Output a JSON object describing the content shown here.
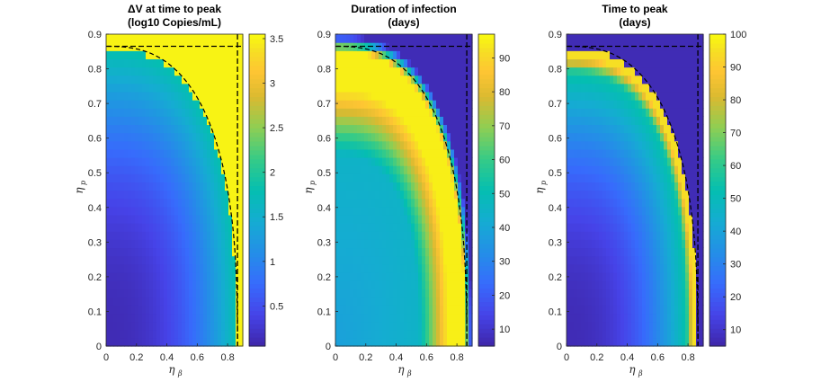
{
  "chart_data": [
    {
      "type": "heatmap",
      "id": "p1",
      "title_line1": "ΔV at time to peak",
      "title_line2": "(log10 Copies/mL)",
      "xlabel": "η",
      "xlabel_sub": "β",
      "ylabel": "η",
      "ylabel_sub": "p",
      "xlim": [
        0,
        0.9
      ],
      "ylim": [
        0,
        0.9
      ],
      "xticks": [
        "0",
        "0.2",
        "0.4",
        "0.6",
        "0.8"
      ],
      "yticks": [
        "0",
        "0.1",
        "0.2",
        "0.3",
        "0.4",
        "0.5",
        "0.6",
        "0.7",
        "0.8",
        "0.9"
      ],
      "clim": [
        0.05,
        3.55
      ],
      "colorbar_ticks": [
        "0.5",
        "1",
        "1.5",
        "2",
        "2.5",
        "3",
        "3.5"
      ],
      "colorbar_tick_values": [
        0.5,
        1,
        1.5,
        2,
        2.5,
        3,
        3.5
      ],
      "field": "deltaV",
      "dashed_h": 0.865,
      "dashed_v": 0.865
    },
    {
      "type": "heatmap",
      "id": "p2",
      "title_line1": "Duration of infection",
      "title_line2": "(days)",
      "xlabel": "η",
      "xlabel_sub": "β",
      "ylabel": "η",
      "ylabel_sub": "p",
      "xlim": [
        0,
        0.9
      ],
      "ylim": [
        0,
        0.9
      ],
      "xticks": [
        "0",
        "0.2",
        "0.4",
        "0.6",
        "0.8"
      ],
      "yticks": [
        "0",
        "0.1",
        "0.2",
        "0.3",
        "0.4",
        "0.5",
        "0.6",
        "0.7",
        "0.8",
        "0.9"
      ],
      "clim": [
        5,
        97
      ],
      "colorbar_ticks": [
        "10",
        "20",
        "30",
        "40",
        "50",
        "60",
        "70",
        "80",
        "90"
      ],
      "colorbar_tick_values": [
        10,
        20,
        30,
        40,
        50,
        60,
        70,
        80,
        90
      ],
      "field": "duration",
      "dashed_h": 0.865,
      "dashed_v": 0.865
    },
    {
      "type": "heatmap",
      "id": "p3",
      "title_line1": "Time to peak",
      "title_line2": "(days)",
      "xlabel": "η",
      "xlabel_sub": "β",
      "ylabel": "η",
      "ylabel_sub": "p",
      "xlim": [
        0,
        0.9
      ],
      "ylim": [
        0,
        0.9
      ],
      "xticks": [
        "0",
        "0.2",
        "0.4",
        "0.6",
        "0.8"
      ],
      "yticks": [
        "0",
        "0.1",
        "0.2",
        "0.3",
        "0.4",
        "0.5",
        "0.6",
        "0.7",
        "0.8",
        "0.9"
      ],
      "clim": [
        5,
        100
      ],
      "colorbar_ticks": [
        "10",
        "20",
        "30",
        "40",
        "50",
        "60",
        "70",
        "80",
        "90",
        "100"
      ],
      "colorbar_tick_values": [
        10,
        20,
        30,
        40,
        50,
        60,
        70,
        80,
        90,
        100
      ],
      "field": "timeToPeak",
      "dashed_h": 0.865,
      "dashed_v": 0.865
    }
  ],
  "colormap": "parula"
}
